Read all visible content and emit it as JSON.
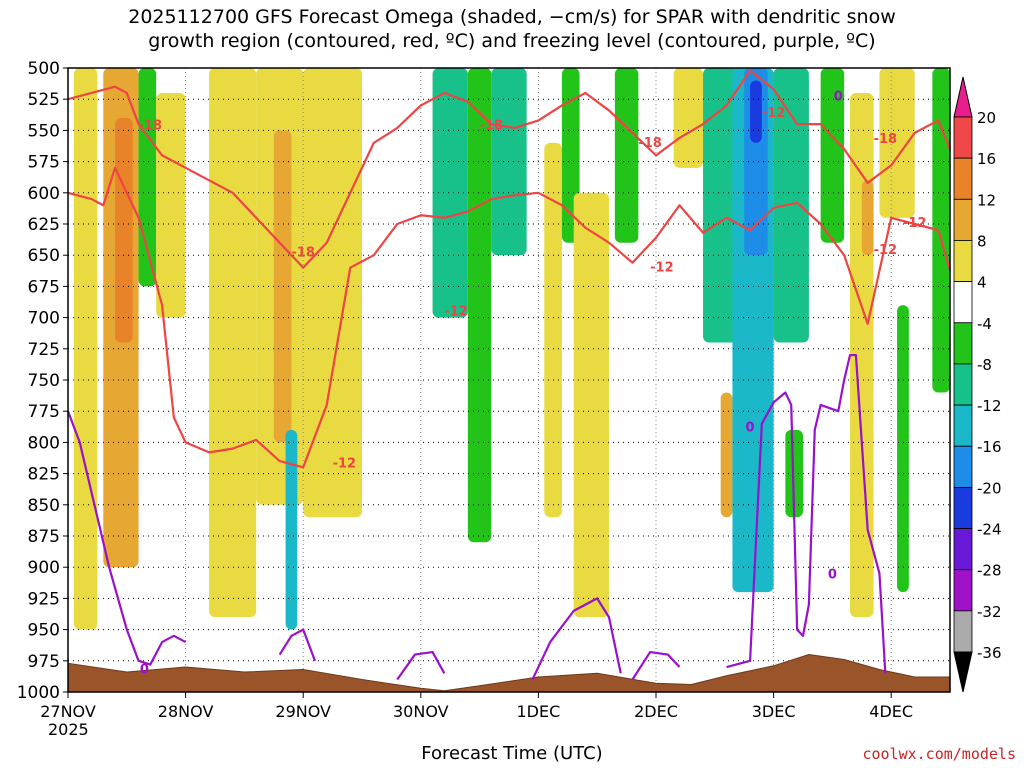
{
  "title_line1": "2025112700 GFS Forecast Omega (shaded, −cm/s) for SPAR with dendritic snow",
  "title_line2": "growth region (contoured, red, ºC) and freezing level (contoured, purple, ºC)",
  "xlabel": "Forecast Time (UTC)",
  "year_label": "2025",
  "credit": "coolwx.com/models",
  "colors": {
    "red_contour": "#ee4444",
    "purple_contour": "#9911cc",
    "terrain": "#99542a",
    "terrain_edge": "#6b3a1c"
  },
  "chart_data": {
    "type": "heatmap",
    "xlabel": "Forecast Time (UTC)",
    "ylabel": "Pressure (hPa)",
    "x_ticks": [
      "27NOV",
      "28NOV",
      "29NOV",
      "30NOV",
      "1DEC",
      "2DEC",
      "3DEC",
      "4DEC"
    ],
    "x_range_days": [
      0,
      7.5
    ],
    "y_ticks": [
      500,
      525,
      550,
      575,
      600,
      625,
      650,
      675,
      700,
      725,
      750,
      775,
      800,
      825,
      850,
      875,
      900,
      925,
      950,
      975,
      1000
    ],
    "ylim": [
      1000,
      500
    ],
    "colorbar": {
      "labels": [
        20,
        16,
        12,
        8,
        4,
        -4,
        -8,
        -12,
        -16,
        -20,
        -24,
        -28,
        -32,
        -36
      ],
      "bins": [
        {
          "range": "16 to 20",
          "color": "#f04848"
        },
        {
          "range": "12 to 16",
          "color": "#e8832a"
        },
        {
          "range": "8 to 12",
          "color": "#e6a733"
        },
        {
          "range": "4 to 8",
          "color": "#e8da40"
        },
        {
          "range": "-4 to 4",
          "color": "#ffffff"
        },
        {
          "range": "-8 to -4",
          "color": "#22c41a"
        },
        {
          "range": "-12 to -8",
          "color": "#18c08a"
        },
        {
          "range": "-16 to -12",
          "color": "#1ab8c8"
        },
        {
          "range": "-20 to -16",
          "color": "#1e8de8"
        },
        {
          "range": "-24 to -20",
          "color": "#1a3be0"
        },
        {
          "range": "-28 to -24",
          "color": "#6a18d8"
        },
        {
          "range": "-32 to -28",
          "color": "#a010c8"
        },
        {
          "range": "-36 to -32",
          "color": "#aaaaaa"
        }
      ],
      "top_arrow_color": "#e81e8c",
      "bottom_arrow_color": "#000000"
    },
    "contour_labels": [
      {
        "text": "-18",
        "x_day": 0.7,
        "p": 546,
        "series": "dgz"
      },
      {
        "text": "-18",
        "x_day": 2.0,
        "p": 648,
        "series": "dgz"
      },
      {
        "text": "-12",
        "x_day": 2.35,
        "p": 817,
        "series": "dgz"
      },
      {
        "text": "-12",
        "x_day": 3.3,
        "p": 695,
        "series": "dgz"
      },
      {
        "text": "-18",
        "x_day": 3.6,
        "p": 546,
        "series": "dgz"
      },
      {
        "text": "-12",
        "x_day": 5.05,
        "p": 660,
        "series": "dgz"
      },
      {
        "text": "-18",
        "x_day": 4.95,
        "p": 560,
        "series": "dgz"
      },
      {
        "text": "-12",
        "x_day": 6.0,
        "p": 536,
        "series": "dgz"
      },
      {
        "text": "-12",
        "x_day": 6.95,
        "p": 646,
        "series": "dgz"
      },
      {
        "text": "-12",
        "x_day": 7.2,
        "p": 624,
        "series": "dgz"
      },
      {
        "text": "-18",
        "x_day": 6.95,
        "p": 557,
        "series": "dgz"
      },
      {
        "text": "0",
        "x_day": 0.65,
        "p": 982,
        "series": "freezing"
      },
      {
        "text": "0",
        "x_day": 5.8,
        "p": 788,
        "series": "freezing"
      },
      {
        "text": "0",
        "x_day": 6.5,
        "p": 906,
        "series": "freezing"
      },
      {
        "text": "0",
        "x_day": 6.55,
        "p": 523,
        "series": "freezing"
      }
    ],
    "series": [
      {
        "name": "dendritic growth upper (-18°C)",
        "x": [
          0,
          0.2,
          0.4,
          0.5,
          0.6,
          0.8,
          1.0,
          1.2,
          1.4,
          1.6,
          1.8,
          2.0,
          2.2,
          2.4,
          2.6,
          2.8,
          3.0,
          3.2,
          3.4,
          3.6,
          3.8,
          4.0,
          4.2,
          4.4,
          4.6,
          4.8,
          5.0,
          5.2,
          5.4,
          5.6,
          5.8,
          6.0,
          6.2,
          6.4,
          6.6,
          6.8,
          7.0,
          7.2,
          7.4,
          7.5
        ],
        "p": [
          525,
          520,
          515,
          520,
          545,
          570,
          580,
          590,
          600,
          620,
          640,
          660,
          640,
          600,
          560,
          548,
          530,
          520,
          527,
          545,
          548,
          542,
          530,
          520,
          534,
          552,
          570,
          556,
          545,
          530,
          502,
          517,
          545,
          545,
          565,
          592,
          578,
          552,
          542,
          565
        ]
      },
      {
        "name": "dendritic growth lower (-12°C)",
        "x": [
          0,
          0.2,
          0.3,
          0.4,
          0.6,
          0.8,
          0.9,
          1.0,
          1.2,
          1.4,
          1.6,
          1.8,
          2.0,
          2.2,
          2.4,
          2.6,
          2.8,
          3.0,
          3.2,
          3.4,
          3.6,
          3.8,
          4.0,
          4.2,
          4.4,
          4.6,
          4.8,
          5.0,
          5.2,
          5.4,
          5.6,
          5.8,
          6.0,
          6.2,
          6.4,
          6.6,
          6.8,
          7.0,
          7.2,
          7.4,
          7.5
        ],
        "p": [
          600,
          605,
          610,
          580,
          620,
          690,
          780,
          800,
          808,
          805,
          798,
          815,
          820,
          770,
          660,
          650,
          625,
          618,
          620,
          615,
          605,
          602,
          600,
          610,
          628,
          640,
          656,
          636,
          610,
          632,
          620,
          630,
          612,
          608,
          625,
          650,
          705,
          620,
          625,
          630,
          662
        ]
      },
      {
        "name": "freezing level (0°C) segment 1",
        "x": [
          0,
          0.1,
          0.2,
          0.35,
          0.5,
          0.6,
          0.7,
          0.8,
          0.9,
          1.0
        ],
        "p": [
          775,
          800,
          840,
          900,
          950,
          975,
          978,
          960,
          955,
          960
        ]
      },
      {
        "name": "freezing level (0°C) segment 2",
        "x": [
          1.8,
          1.9,
          2.0,
          2.1
        ],
        "p": [
          970,
          955,
          950,
          975
        ]
      },
      {
        "name": "freezing level (0°C) segment 3",
        "x": [
          2.8,
          2.95,
          3.1,
          3.2
        ],
        "p": [
          990,
          970,
          968,
          985
        ]
      },
      {
        "name": "freezing level (0°C) segment 4",
        "x": [
          3.95,
          4.1,
          4.3,
          4.5,
          4.6,
          4.7
        ],
        "p": [
          990,
          960,
          935,
          925,
          940,
          985
        ]
      },
      {
        "name": "freezing level (0°C) segment 5",
        "x": [
          4.8,
          4.95,
          5.1,
          5.2
        ],
        "p": [
          990,
          968,
          970,
          980
        ]
      },
      {
        "name": "freezing level (0°C) segment 6",
        "x": [
          5.6,
          5.8,
          5.9,
          6.0,
          6.1,
          6.15,
          6.2,
          6.25,
          6.3,
          6.35,
          6.4,
          6.55,
          6.6,
          6.65,
          6.7,
          6.75,
          6.8,
          6.9,
          6.95
        ],
        "p": [
          980,
          975,
          785,
          768,
          760,
          770,
          950,
          955,
          930,
          790,
          770,
          775,
          750,
          730,
          730,
          800,
          870,
          905,
          985
        ]
      }
    ],
    "terrain_surface": {
      "x": [
        0,
        0.5,
        1.0,
        1.5,
        2.0,
        2.5,
        3.0,
        3.2,
        3.5,
        4.0,
        4.5,
        5.0,
        5.3,
        5.6,
        6.0,
        6.3,
        6.6,
        6.9,
        7.2,
        7.5
      ],
      "p": [
        977,
        984,
        980,
        984,
        982,
        990,
        997,
        999,
        995,
        988,
        985,
        993,
        994,
        987,
        979,
        970,
        974,
        982,
        988,
        988
      ]
    },
    "shading_columns": [
      {
        "x0": 0.05,
        "x1": 0.25,
        "p0": 500,
        "p1": 950,
        "value": 6
      },
      {
        "x0": 0.3,
        "x1": 0.6,
        "p0": 500,
        "p1": 900,
        "value": 10
      },
      {
        "x0": 0.4,
        "x1": 0.55,
        "p0": 540,
        "p1": 720,
        "value": 14
      },
      {
        "x0": 0.6,
        "x1": 0.75,
        "p0": 500,
        "p1": 675,
        "value": -6
      },
      {
        "x0": 0.75,
        "x1": 1.0,
        "p0": 520,
        "p1": 700,
        "value": 6
      },
      {
        "x0": 1.2,
        "x1": 1.6,
        "p0": 500,
        "p1": 940,
        "value": 6
      },
      {
        "x0": 1.6,
        "x1": 2.0,
        "p0": 500,
        "p1": 850,
        "value": 8
      },
      {
        "x0": 1.75,
        "x1": 1.9,
        "p0": 550,
        "p1": 800,
        "value": 12
      },
      {
        "x0": 1.85,
        "x1": 1.95,
        "p0": 790,
        "p1": 950,
        "value": -12
      },
      {
        "x0": 2.0,
        "x1": 2.5,
        "p0": 500,
        "p1": 860,
        "value": 6
      },
      {
        "x0": 2.6,
        "x1": 2.8,
        "p0": 600,
        "p1": 880,
        "value": 4
      },
      {
        "x0": 3.1,
        "x1": 3.4,
        "p0": 500,
        "p1": 700,
        "value": -8
      },
      {
        "x0": 3.4,
        "x1": 3.6,
        "p0": 500,
        "p1": 880,
        "value": -6
      },
      {
        "x0": 3.6,
        "x1": 3.9,
        "p0": 500,
        "p1": 650,
        "value": -10
      },
      {
        "x0": 4.05,
        "x1": 4.2,
        "p0": 560,
        "p1": 860,
        "value": 6
      },
      {
        "x0": 4.2,
        "x1": 4.35,
        "p0": 500,
        "p1": 640,
        "value": -6
      },
      {
        "x0": 4.3,
        "x1": 4.6,
        "p0": 600,
        "p1": 940,
        "value": 8
      },
      {
        "x0": 4.65,
        "x1": 4.85,
        "p0": 500,
        "p1": 640,
        "value": -6
      },
      {
        "x0": 5.15,
        "x1": 5.4,
        "p0": 500,
        "p1": 580,
        "value": 6
      },
      {
        "x0": 5.4,
        "x1": 5.7,
        "p0": 500,
        "p1": 720,
        "value": -8
      },
      {
        "x0": 5.55,
        "x1": 5.65,
        "p0": 760,
        "p1": 860,
        "value": 10
      },
      {
        "x0": 5.65,
        "x1": 6.0,
        "p0": 500,
        "p1": 920,
        "value": -12
      },
      {
        "x0": 5.75,
        "x1": 5.95,
        "p0": 500,
        "p1": 650,
        "value": -18
      },
      {
        "x0": 5.8,
        "x1": 5.9,
        "p0": 510,
        "p1": 560,
        "value": -22
      },
      {
        "x0": 6.0,
        "x1": 6.3,
        "p0": 500,
        "p1": 720,
        "value": -8
      },
      {
        "x0": 6.1,
        "x1": 6.25,
        "p0": 790,
        "p1": 860,
        "value": -6
      },
      {
        "x0": 6.4,
        "x1": 6.6,
        "p0": 500,
        "p1": 640,
        "value": -6
      },
      {
        "x0": 6.65,
        "x1": 6.85,
        "p0": 520,
        "p1": 940,
        "value": 6
      },
      {
        "x0": 6.75,
        "x1": 6.85,
        "p0": 590,
        "p1": 650,
        "value": 10
      },
      {
        "x0": 6.9,
        "x1": 7.2,
        "p0": 500,
        "p1": 620,
        "value": 6
      },
      {
        "x0": 7.05,
        "x1": 7.15,
        "p0": 690,
        "p1": 920,
        "value": -6
      },
      {
        "x0": 7.35,
        "x1": 7.5,
        "p0": 500,
        "p1": 760,
        "value": -6
      }
    ]
  }
}
